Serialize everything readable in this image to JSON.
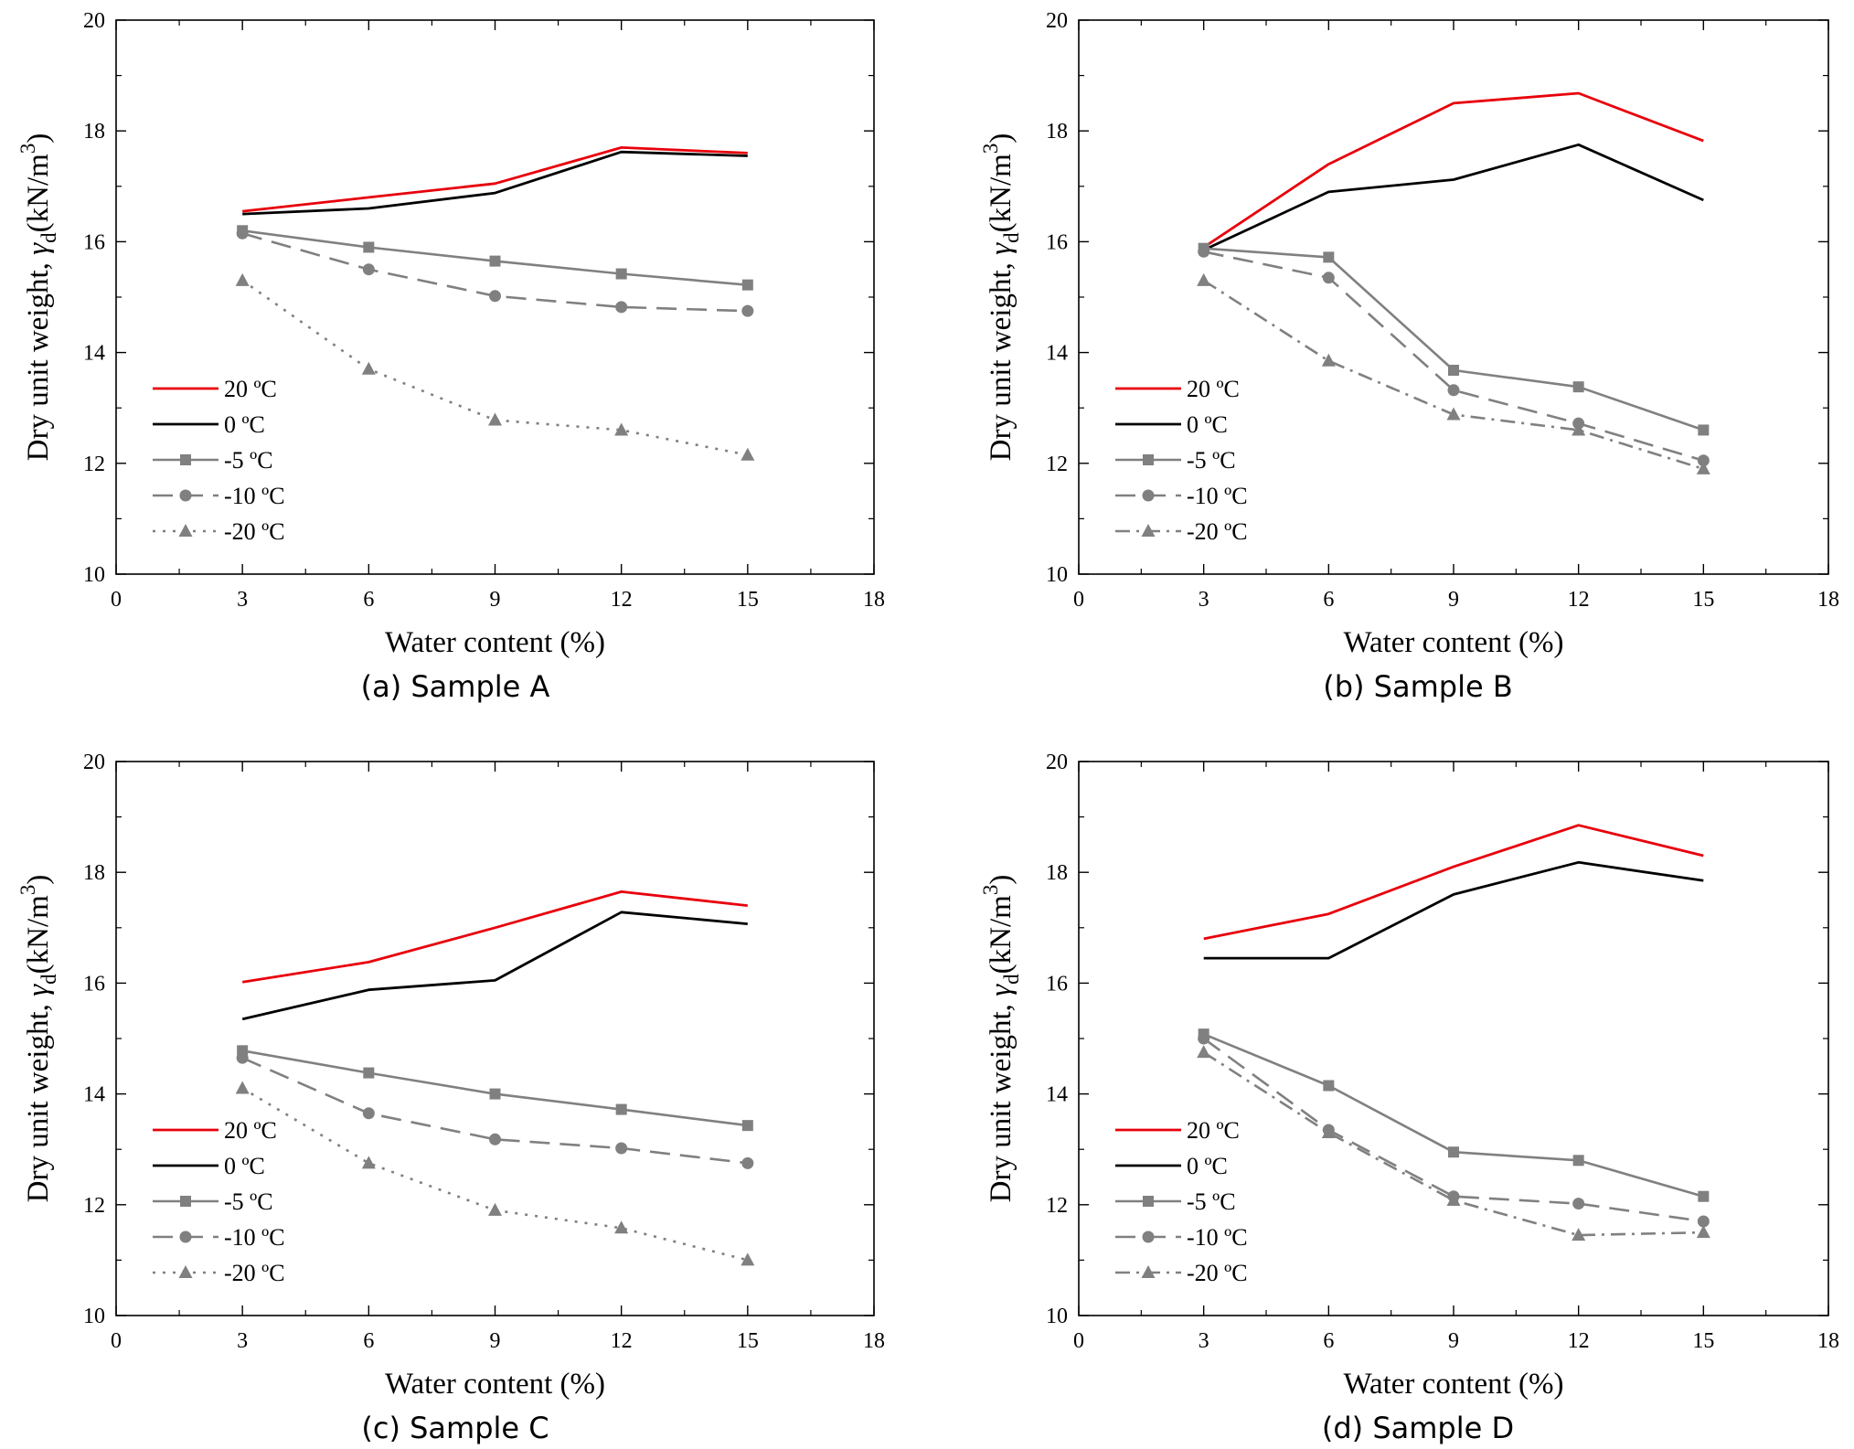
{
  "figure": {
    "panels": [
      {
        "caption": "(a)  Sample  A",
        "ylabel_main": "Dry unit weight, ",
        "ylabel_gamma": "γ",
        "ylabel_sub": "d",
        "ylabel_unit": "(kN/m",
        "ylabel_sup": "3",
        "ylabel_close": ")"
      },
      {
        "caption": "(b)  Sample  B",
        "ylabel_main": "Dry unit weight, ",
        "ylabel_gamma": "γ",
        "ylabel_sub": "d",
        "ylabel_unit": "(kN/m",
        "ylabel_sup": "3",
        "ylabel_close": ")"
      },
      {
        "caption": "(c)  Sample  C",
        "ylabel_main": "Dry unit weight, ",
        "ylabel_gamma": "γ",
        "ylabel_sub": "d",
        "ylabel_unit": "(kN/m",
        "ylabel_sup": "3",
        "ylabel_close": ")"
      },
      {
        "caption": "(d)  Sample  D",
        "ylabel_main": "Dry unit weight, ",
        "ylabel_gamma": "γ",
        "ylabel_sub": "d",
        "ylabel_unit": "(kN/m",
        "ylabel_sup": "3",
        "ylabel_close": ")"
      }
    ]
  },
  "chart_data": [
    {
      "type": "line",
      "title": "(a) Sample A",
      "xlabel": "Water content (%)",
      "ylabel": "Dry unit weight, γd (kN/m3)",
      "xlim": [
        0,
        18
      ],
      "ylim": [
        10,
        20
      ],
      "xticks": [
        "0",
        "3",
        "6",
        "9",
        "12",
        "15",
        "18"
      ],
      "yticks": [
        "10",
        "12",
        "14",
        "16",
        "18",
        "20"
      ],
      "x": [
        3,
        6,
        9,
        12,
        15
      ],
      "legend_position": "lower-left",
      "series": [
        {
          "name": "20 ºC",
          "values": [
            16.55,
            16.8,
            17.05,
            17.7,
            17.6
          ],
          "color": "#e8000b",
          "dash": "solid",
          "marker": "none"
        },
        {
          "name": "0 ºC",
          "values": [
            16.5,
            16.6,
            16.88,
            17.62,
            17.55
          ],
          "color": "#000000",
          "dash": "solid",
          "marker": "none"
        },
        {
          "name": "-5 ºC",
          "values": [
            16.2,
            15.9,
            15.65,
            15.42,
            15.22
          ],
          "color": "#808080",
          "dash": "solid",
          "marker": "square"
        },
        {
          "name": "-10 ºC",
          "values": [
            16.15,
            15.5,
            15.02,
            14.82,
            14.75
          ],
          "color": "#808080",
          "dash": "dashed",
          "marker": "circle"
        },
        {
          "name": "-20 ºC",
          "values": [
            15.3,
            13.7,
            12.78,
            12.6,
            12.15
          ],
          "color": "#808080",
          "dash": "dotted",
          "marker": "triangle"
        }
      ]
    },
    {
      "type": "line",
      "title": "(b) Sample B",
      "xlabel": "Water content (%)",
      "ylabel": "Dry unit weight, γd (kN/m3)",
      "xlim": [
        0,
        18
      ],
      "ylim": [
        10,
        20
      ],
      "xticks": [
        "0",
        "3",
        "6",
        "9",
        "12",
        "15",
        "18"
      ],
      "yticks": [
        "10",
        "12",
        "14",
        "16",
        "18",
        "20"
      ],
      "x": [
        3,
        6,
        9,
        12,
        15
      ],
      "legend_position": "lower-left",
      "series": [
        {
          "name": "20 ºC",
          "values": [
            15.9,
            17.4,
            18.5,
            18.68,
            17.82
          ],
          "color": "#e8000b",
          "dash": "solid",
          "marker": "none"
        },
        {
          "name": "0 ºC",
          "values": [
            15.85,
            16.9,
            17.12,
            17.75,
            16.75
          ],
          "color": "#000000",
          "dash": "solid",
          "marker": "none"
        },
        {
          "name": "-5 ºC",
          "values": [
            15.88,
            15.72,
            13.68,
            13.38,
            12.6
          ],
          "color": "#808080",
          "dash": "solid",
          "marker": "square"
        },
        {
          "name": "-10 ºC",
          "values": [
            15.82,
            15.35,
            13.32,
            12.72,
            12.05
          ],
          "color": "#808080",
          "dash": "dashed",
          "marker": "circle"
        },
        {
          "name": "-20 ºC",
          "values": [
            15.3,
            13.85,
            12.88,
            12.6,
            11.9
          ],
          "color": "#808080",
          "dash": "dashdot",
          "marker": "triangle"
        }
      ]
    },
    {
      "type": "line",
      "title": "(c) Sample C",
      "xlabel": "Water content (%)",
      "ylabel": "Dry unit weight, γd (kN/m3)",
      "xlim": [
        0,
        18
      ],
      "ylim": [
        10,
        20
      ],
      "xticks": [
        "0",
        "3",
        "6",
        "9",
        "12",
        "15",
        "18"
      ],
      "yticks": [
        "10",
        "12",
        "14",
        "16",
        "18",
        "20"
      ],
      "x": [
        3,
        6,
        9,
        12,
        15
      ],
      "legend_position": "lower-left",
      "series": [
        {
          "name": "20 ºC",
          "values": [
            16.02,
            16.38,
            17.0,
            17.65,
            17.4
          ],
          "color": "#e8000b",
          "dash": "solid",
          "marker": "none"
        },
        {
          "name": "0 ºC",
          "values": [
            15.35,
            15.88,
            16.05,
            17.28,
            17.07
          ],
          "color": "#000000",
          "dash": "solid",
          "marker": "none"
        },
        {
          "name": "-5 ºC",
          "values": [
            14.78,
            14.38,
            14.0,
            13.72,
            13.43
          ],
          "color": "#808080",
          "dash": "solid",
          "marker": "square"
        },
        {
          "name": "-10 ºC",
          "values": [
            14.65,
            13.65,
            13.18,
            13.02,
            12.75
          ],
          "color": "#808080",
          "dash": "dashed",
          "marker": "circle"
        },
        {
          "name": "-20 ºC",
          "values": [
            14.1,
            12.75,
            11.9,
            11.58,
            11.0
          ],
          "color": "#808080",
          "dash": "dotted",
          "marker": "triangle"
        }
      ]
    },
    {
      "type": "line",
      "title": "(d) Sample D",
      "xlabel": "Water content (%)",
      "ylabel": "Dry unit weight, γd (kN/m3)",
      "xlim": [
        0,
        18
      ],
      "ylim": [
        10,
        20
      ],
      "xticks": [
        "0",
        "3",
        "6",
        "9",
        "12",
        "15",
        "18"
      ],
      "yticks": [
        "10",
        "12",
        "14",
        "16",
        "18",
        "20"
      ],
      "x": [
        3,
        6,
        9,
        12,
        15
      ],
      "legend_position": "lower-left",
      "series": [
        {
          "name": "20 ºC",
          "values": [
            16.8,
            17.25,
            18.1,
            18.85,
            18.3
          ],
          "color": "#e8000b",
          "dash": "solid",
          "marker": "none"
        },
        {
          "name": "0 ºC",
          "values": [
            16.45,
            16.45,
            17.6,
            18.18,
            17.85
          ],
          "color": "#000000",
          "dash": "solid",
          "marker": "none"
        },
        {
          "name": "-5 ºC",
          "values": [
            15.08,
            14.15,
            12.95,
            12.8,
            12.15
          ],
          "color": "#808080",
          "dash": "solid",
          "marker": "square"
        },
        {
          "name": "-10 ºC",
          "values": [
            15.0,
            13.35,
            12.15,
            12.02,
            11.7
          ],
          "color": "#808080",
          "dash": "dashed",
          "marker": "circle"
        },
        {
          "name": "-20 ºC",
          "values": [
            14.75,
            13.3,
            12.08,
            11.45,
            11.5
          ],
          "color": "#808080",
          "dash": "dashdot",
          "marker": "triangle"
        }
      ]
    }
  ]
}
